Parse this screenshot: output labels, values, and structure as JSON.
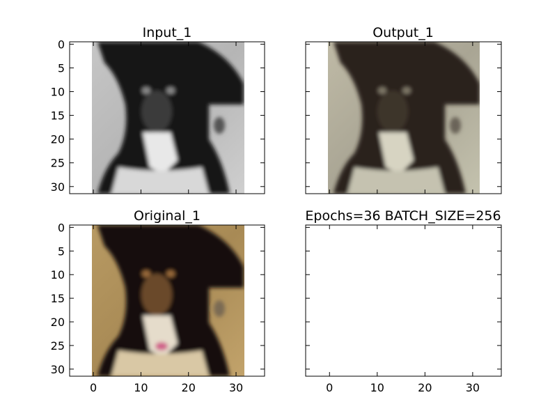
{
  "chart_data": [
    {
      "type": "image",
      "title": "Input_1",
      "image_kind": "grayscale",
      "yticks": [
        0,
        5,
        10,
        15,
        20,
        25,
        30
      ],
      "xticks": [],
      "x_range": [
        -5,
        36
      ],
      "y_range": [
        31.5,
        -0.5
      ],
      "image_extent": [
        -0.5,
        31.5
      ]
    },
    {
      "type": "image",
      "title": "Output_1",
      "image_kind": "desaturated",
      "yticks": [],
      "xticks": [],
      "x_range": [
        -5,
        36
      ],
      "y_range": [
        31.5,
        -0.5
      ],
      "image_extent": [
        -0.5,
        31.5
      ]
    },
    {
      "type": "image",
      "title": "Original_1",
      "image_kind": "color",
      "yticks": [
        0,
        5,
        10,
        15,
        20,
        25,
        30
      ],
      "xticks": [
        0,
        10,
        20,
        30
      ],
      "x_range": [
        -5,
        36
      ],
      "y_range": [
        31.5,
        -0.5
      ],
      "image_extent": [
        -0.5,
        31.5
      ]
    },
    {
      "type": "empty",
      "title": "Epochs=36 BATCH_SIZE=256",
      "image_kind": "none",
      "yticks": [],
      "xticks": [
        0,
        10,
        20,
        30
      ],
      "x_range": [
        -5,
        36
      ],
      "y_range": [
        31.5,
        -0.5
      ],
      "image_extent": [
        -0.5,
        31.5
      ]
    }
  ]
}
